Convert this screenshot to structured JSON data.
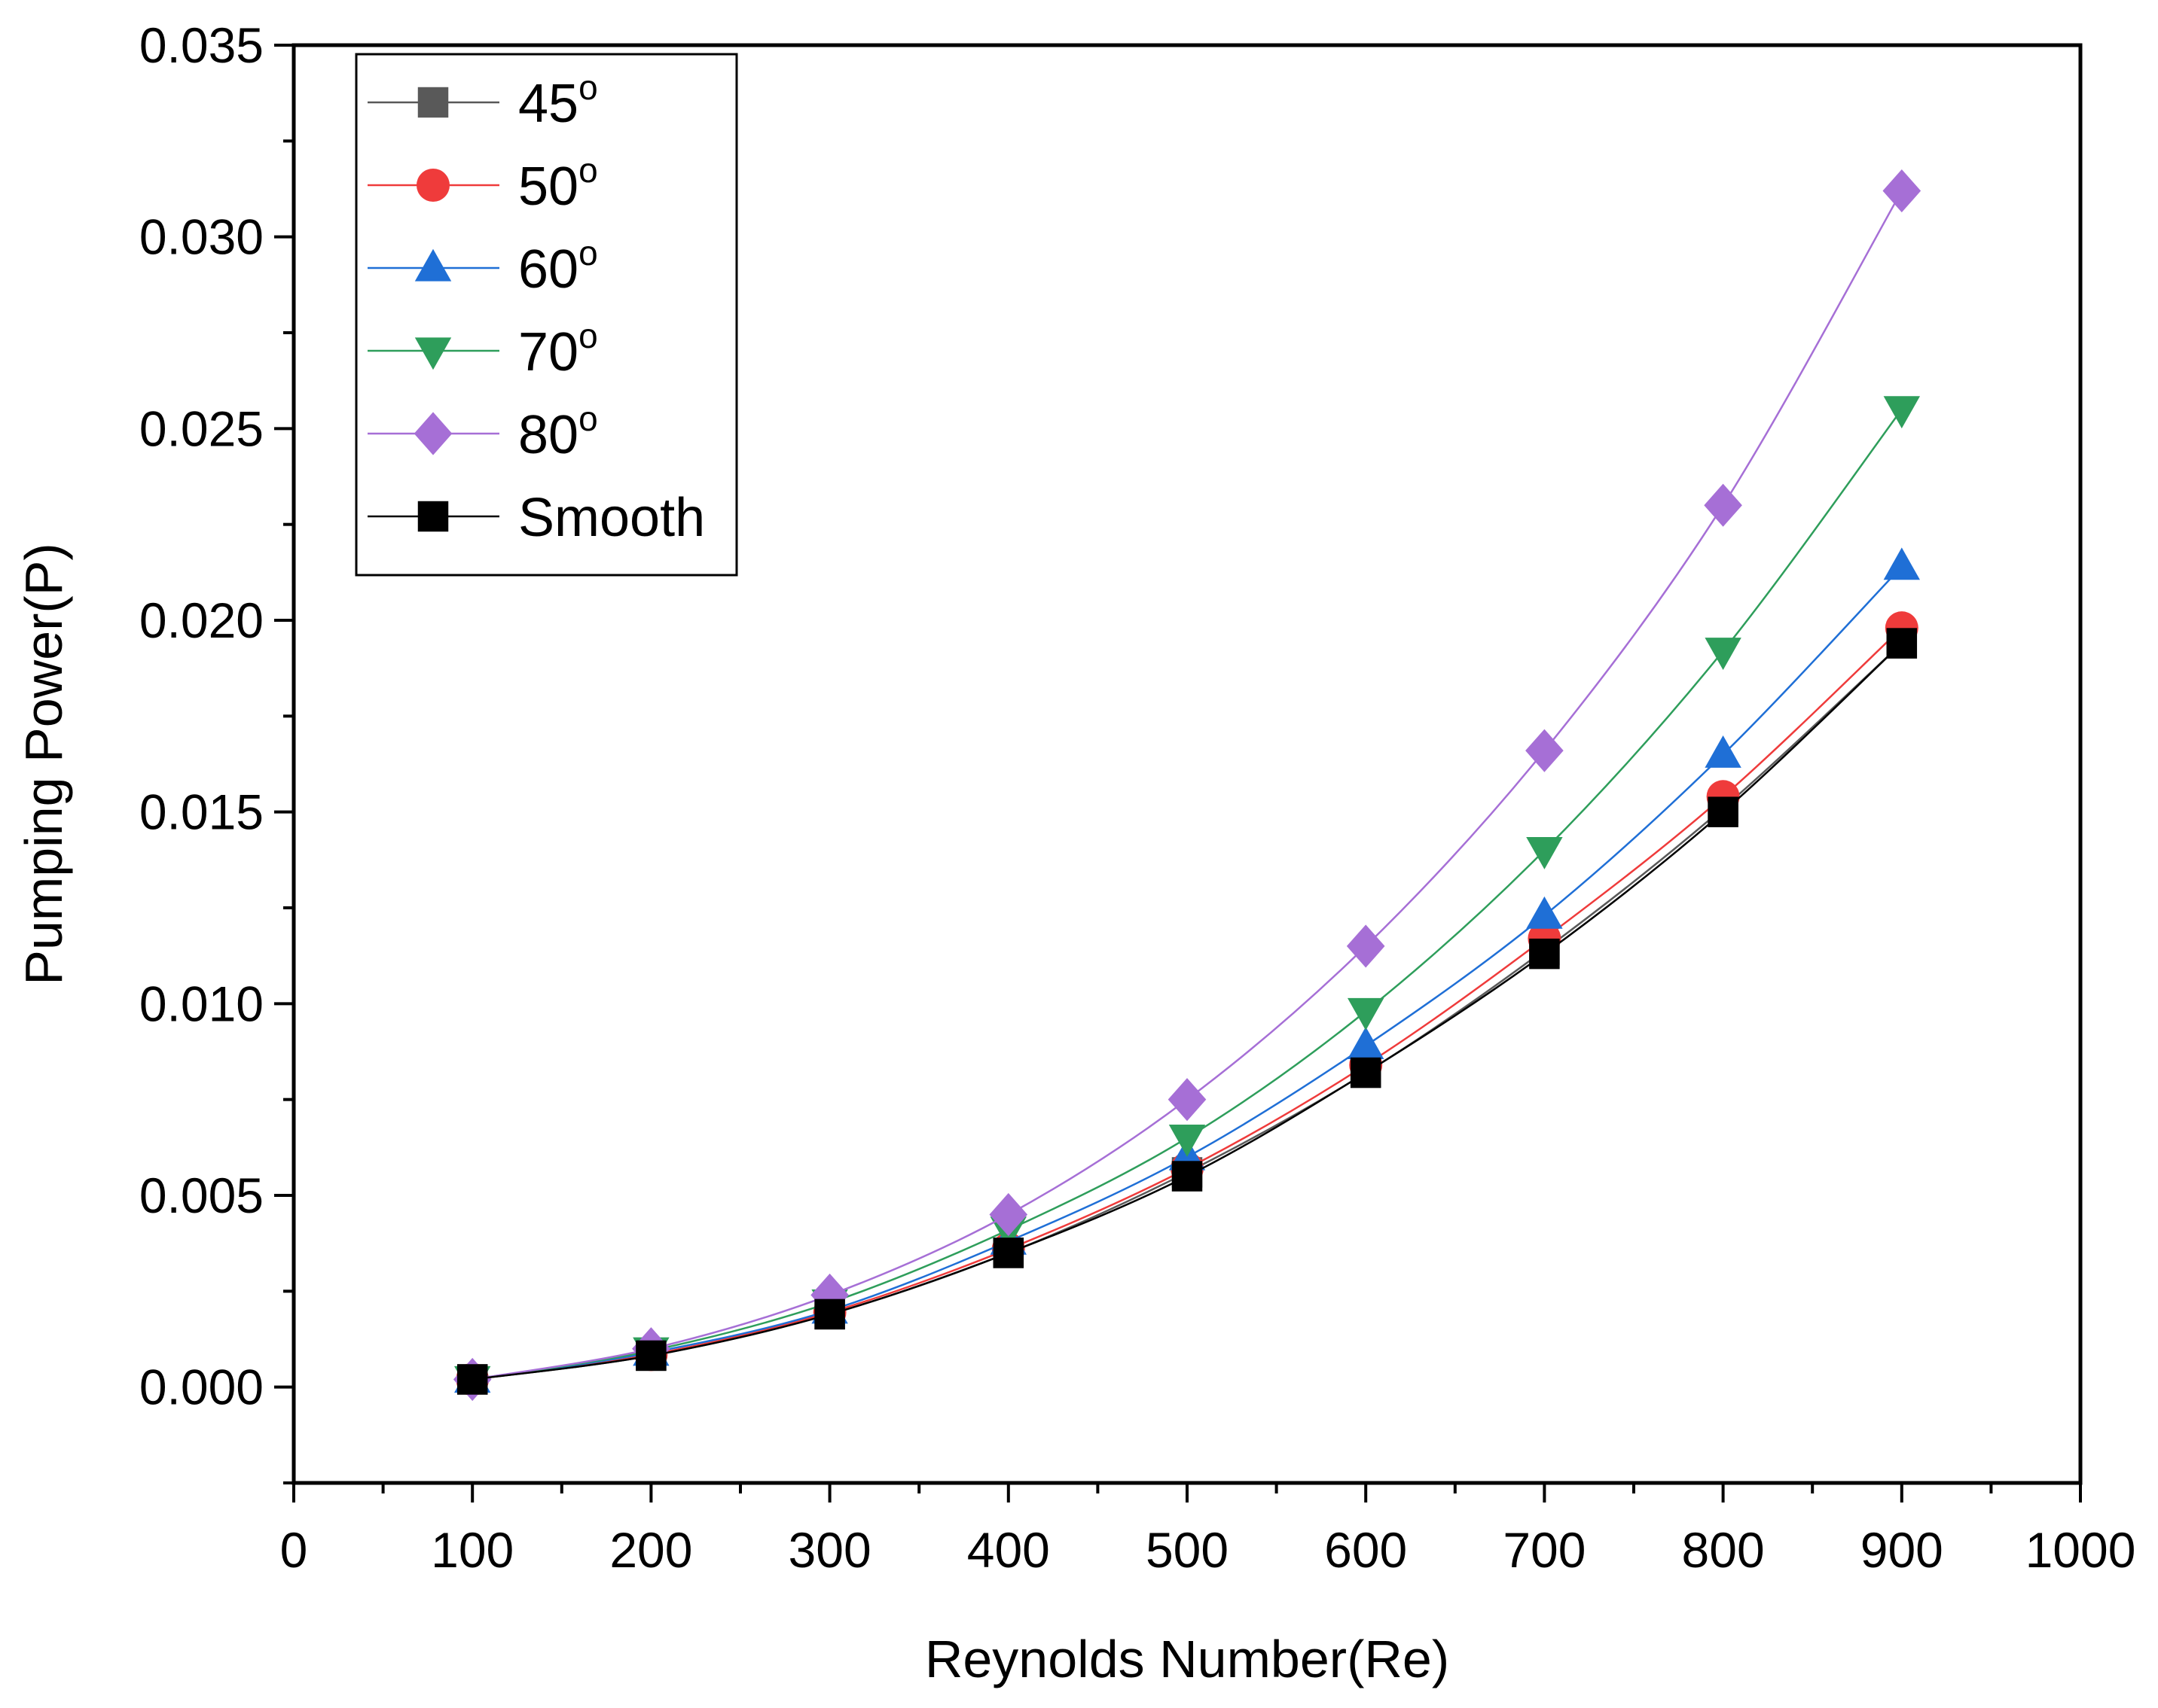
{
  "chart_data": {
    "type": "line",
    "title": "",
    "xlabel": "Reynolds Number(Re)",
    "ylabel": "Pumping Power(P)",
    "xlim": [
      0,
      1000
    ],
    "ylim": [
      -0.0025,
      0.035
    ],
    "x_ticks": [
      "0",
      "100",
      "200",
      "300",
      "400",
      "500",
      "600",
      "700",
      "800",
      "900",
      "1000"
    ],
    "y_ticks": [
      "0.000",
      "0.005",
      "0.010",
      "0.015",
      "0.020",
      "0.025",
      "0.030",
      "0.035"
    ],
    "grid": false,
    "legend_position": "top-left",
    "x": [
      100,
      200,
      300,
      400,
      500,
      600,
      700,
      800,
      900
    ],
    "series": [
      {
        "name": "45",
        "name_sup": "o",
        "marker": "square",
        "color": "#595959",
        "values": [
          0.0002,
          0.00082,
          0.0019,
          0.0035,
          0.0056,
          0.0082,
          0.0114,
          0.0151,
          0.0194
        ]
      },
      {
        "name": "50",
        "name_sup": "o",
        "marker": "circle",
        "color": "#ef3b3b",
        "values": [
          0.0002,
          0.00085,
          0.00195,
          0.0036,
          0.0057,
          0.0084,
          0.0117,
          0.0154,
          0.0198
        ]
      },
      {
        "name": "60",
        "name_sup": "o",
        "marker": "triangle-up",
        "color": "#1f6fd6",
        "values": [
          0.0002,
          0.0009,
          0.002,
          0.0038,
          0.006,
          0.0089,
          0.0123,
          0.0165,
          0.0214
        ]
      },
      {
        "name": "70",
        "name_sup": "o",
        "marker": "triangle-down",
        "color": "#2e9e5b",
        "values": [
          0.0002,
          0.00095,
          0.0022,
          0.0041,
          0.0065,
          0.0098,
          0.014,
          0.0192,
          0.0255
        ]
      },
      {
        "name": "80",
        "name_sup": "o",
        "marker": "diamond",
        "color": "#a66fd6",
        "values": [
          0.0002,
          0.001,
          0.0024,
          0.0045,
          0.0075,
          0.0115,
          0.0166,
          0.023,
          0.0312
        ]
      },
      {
        "name": "Smooth",
        "name_sup": "",
        "marker": "square",
        "color": "#000000",
        "values": [
          0.0002,
          0.00082,
          0.0019,
          0.0035,
          0.0055,
          0.0082,
          0.0113,
          0.015,
          0.0194
        ]
      }
    ]
  }
}
